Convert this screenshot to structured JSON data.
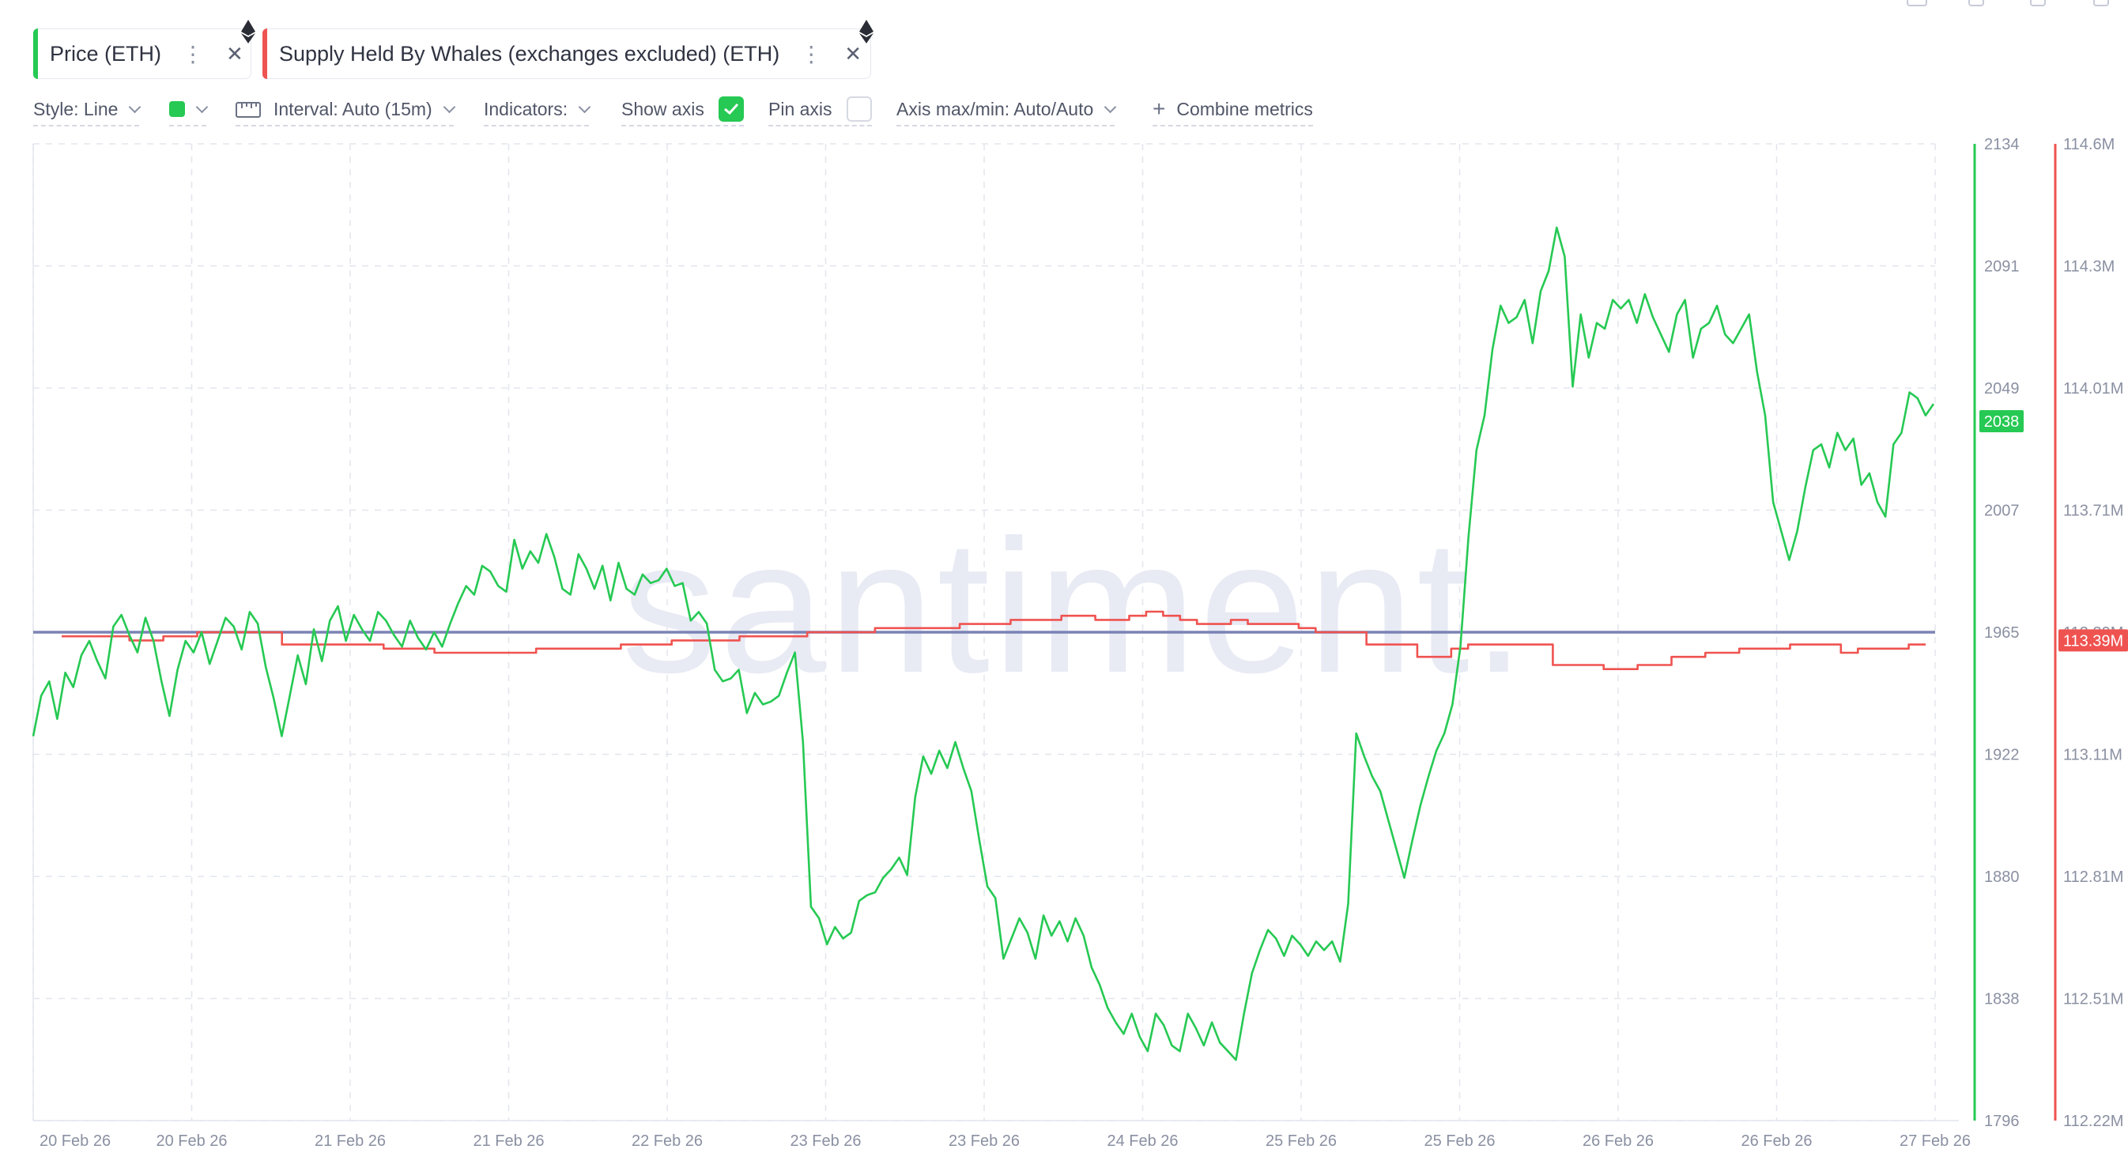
{
  "metrics": [
    {
      "label": "Price (ETH)",
      "color": "#26c953"
    },
    {
      "label": "Supply Held By Whales (exchanges excluded) (ETH)",
      "color": "#ef5350"
    }
  ],
  "toolbar": {
    "style_label": "Style: Line",
    "color_swatch": "#26c953",
    "interval_label": "Interval: Auto (15m)",
    "indicators_label": "Indicators:",
    "show_axis_label": "Show axis",
    "show_axis_checked": true,
    "pin_axis_label": "Pin axis",
    "pin_axis_checked": false,
    "axis_minmax_label": "Axis max/min: Auto/Auto",
    "combine_label": "Combine metrics"
  },
  "watermark": "santiment.",
  "chart_data": {
    "type": "line",
    "x_tick_labels": [
      "20 Feb 26",
      "20 Feb 26",
      "21 Feb 26",
      "21 Feb 26",
      "22 Feb 26",
      "23 Feb 26",
      "23 Feb 26",
      "24 Feb 26",
      "25 Feb 26",
      "25 Feb 26",
      "26 Feb 26",
      "26 Feb 26",
      "27 Feb 26"
    ],
    "price_axis": {
      "ticks": [
        2134,
        2091,
        2049,
        2007,
        1965,
        1922,
        1880,
        1838,
        1796
      ],
      "range": [
        1796,
        2134
      ],
      "current": "2038",
      "color": "#26c953"
    },
    "supply_axis": {
      "ticks": [
        "114.6M",
        "114.3M",
        "114.01M",
        "113.71M",
        "113.39M",
        "113.11M",
        "112.81M",
        "112.51M",
        "112.22M"
      ],
      "range": [
        112.22,
        114.6
      ],
      "current": "113.39M",
      "color": "#ef5350"
    },
    "reference_line": {
      "value": 1965,
      "color": "#7b83b5"
    },
    "series": [
      {
        "name": "Price (ETH)",
        "color": "#26c953",
        "values": [
          1929,
          1943,
          1948,
          1935,
          1951,
          1946,
          1957,
          1962,
          1955,
          1949,
          1967,
          1971,
          1964,
          1958,
          1970,
          1962,
          1948,
          1936,
          1952,
          1962,
          1958,
          1965,
          1954,
          1962,
          1970,
          1967,
          1959,
          1972,
          1968,
          1953,
          1942,
          1929,
          1943,
          1957,
          1947,
          1966,
          1955,
          1969,
          1974,
          1962,
          1971,
          1966,
          1962,
          1972,
          1969,
          1964,
          1960,
          1969,
          1963,
          1959,
          1965,
          1960,
          1968,
          1975,
          1981,
          1978,
          1988,
          1986,
          1981,
          1979,
          1997,
          1987,
          1993,
          1989,
          1999,
          1991,
          1980,
          1978,
          1992,
          1987,
          1980,
          1988,
          1976,
          1989,
          1980,
          1978,
          1985,
          1982,
          1983,
          1987,
          1981,
          1982,
          1969,
          1972,
          1968,
          1952,
          1948,
          1949,
          1952,
          1937,
          1944,
          1940,
          1941,
          1943,
          1951,
          1958,
          1927,
          1870,
          1866,
          1857,
          1863,
          1859,
          1861,
          1872,
          1874,
          1875,
          1880,
          1883,
          1887,
          1881,
          1908,
          1922,
          1916,
          1924,
          1918,
          1927,
          1918,
          1910,
          1893,
          1877,
          1873,
          1852,
          1859,
          1866,
          1861,
          1852,
          1867,
          1860,
          1865,
          1858,
          1866,
          1860,
          1849,
          1843,
          1835,
          1830,
          1826,
          1833,
          1825,
          1820,
          1833,
          1829,
          1822,
          1820,
          1833,
          1828,
          1822,
          1830,
          1823,
          1820,
          1817,
          1833,
          1847,
          1855,
          1862,
          1859,
          1853,
          1860,
          1857,
          1853,
          1858,
          1855,
          1858,
          1851,
          1871,
          1930,
          1922,
          1915,
          1910,
          1900,
          1890,
          1880,
          1893,
          1905,
          1915,
          1924,
          1930,
          1940,
          1960,
          1998,
          2028,
          2040,
          2063,
          2078,
          2072,
          2074,
          2080,
          2065,
          2083,
          2090,
          2105,
          2095,
          2050,
          2075,
          2060,
          2072,
          2070,
          2080,
          2077,
          2080,
          2072,
          2082,
          2074,
          2068,
          2062,
          2075,
          2080,
          2060,
          2070,
          2072,
          2078,
          2068,
          2065,
          2070,
          2075,
          2055,
          2040,
          2010,
          2000,
          1990,
          2000,
          2015,
          2028,
          2030,
          2022,
          2034,
          2028,
          2032,
          2016,
          2020,
          2010,
          2005,
          2030,
          2034,
          2048,
          2046,
          2040,
          2044
        ]
      },
      {
        "name": "Supply Held By Whales (exchanges excluded) (ETH)",
        "color": "#ef5350",
        "values": [
          113.4,
          113.4,
          113.4,
          113.4,
          113.39,
          113.39,
          113.4,
          113.4,
          113.41,
          113.41,
          113.41,
          113.41,
          113.41,
          113.38,
          113.38,
          113.38,
          113.38,
          113.38,
          113.38,
          113.37,
          113.37,
          113.37,
          113.36,
          113.36,
          113.36,
          113.36,
          113.36,
          113.36,
          113.37,
          113.37,
          113.37,
          113.37,
          113.37,
          113.38,
          113.38,
          113.38,
          113.39,
          113.39,
          113.39,
          113.39,
          113.4,
          113.4,
          113.4,
          113.4,
          113.41,
          113.41,
          113.41,
          113.41,
          113.42,
          113.42,
          113.42,
          113.42,
          113.42,
          113.43,
          113.43,
          113.43,
          113.44,
          113.44,
          113.44,
          113.45,
          113.45,
          113.44,
          113.44,
          113.45,
          113.46,
          113.45,
          113.44,
          113.43,
          113.43,
          113.44,
          113.43,
          113.43,
          113.43,
          113.42,
          113.41,
          113.41,
          113.41,
          113.38,
          113.38,
          113.38,
          113.35,
          113.35,
          113.37,
          113.38,
          113.38,
          113.38,
          113.38,
          113.38,
          113.33,
          113.33,
          113.33,
          113.32,
          113.32,
          113.33,
          113.33,
          113.35,
          113.35,
          113.36,
          113.36,
          113.37,
          113.37,
          113.37,
          113.38,
          113.38,
          113.38,
          113.36,
          113.37,
          113.37,
          113.37,
          113.38,
          113.38
        ]
      }
    ]
  }
}
